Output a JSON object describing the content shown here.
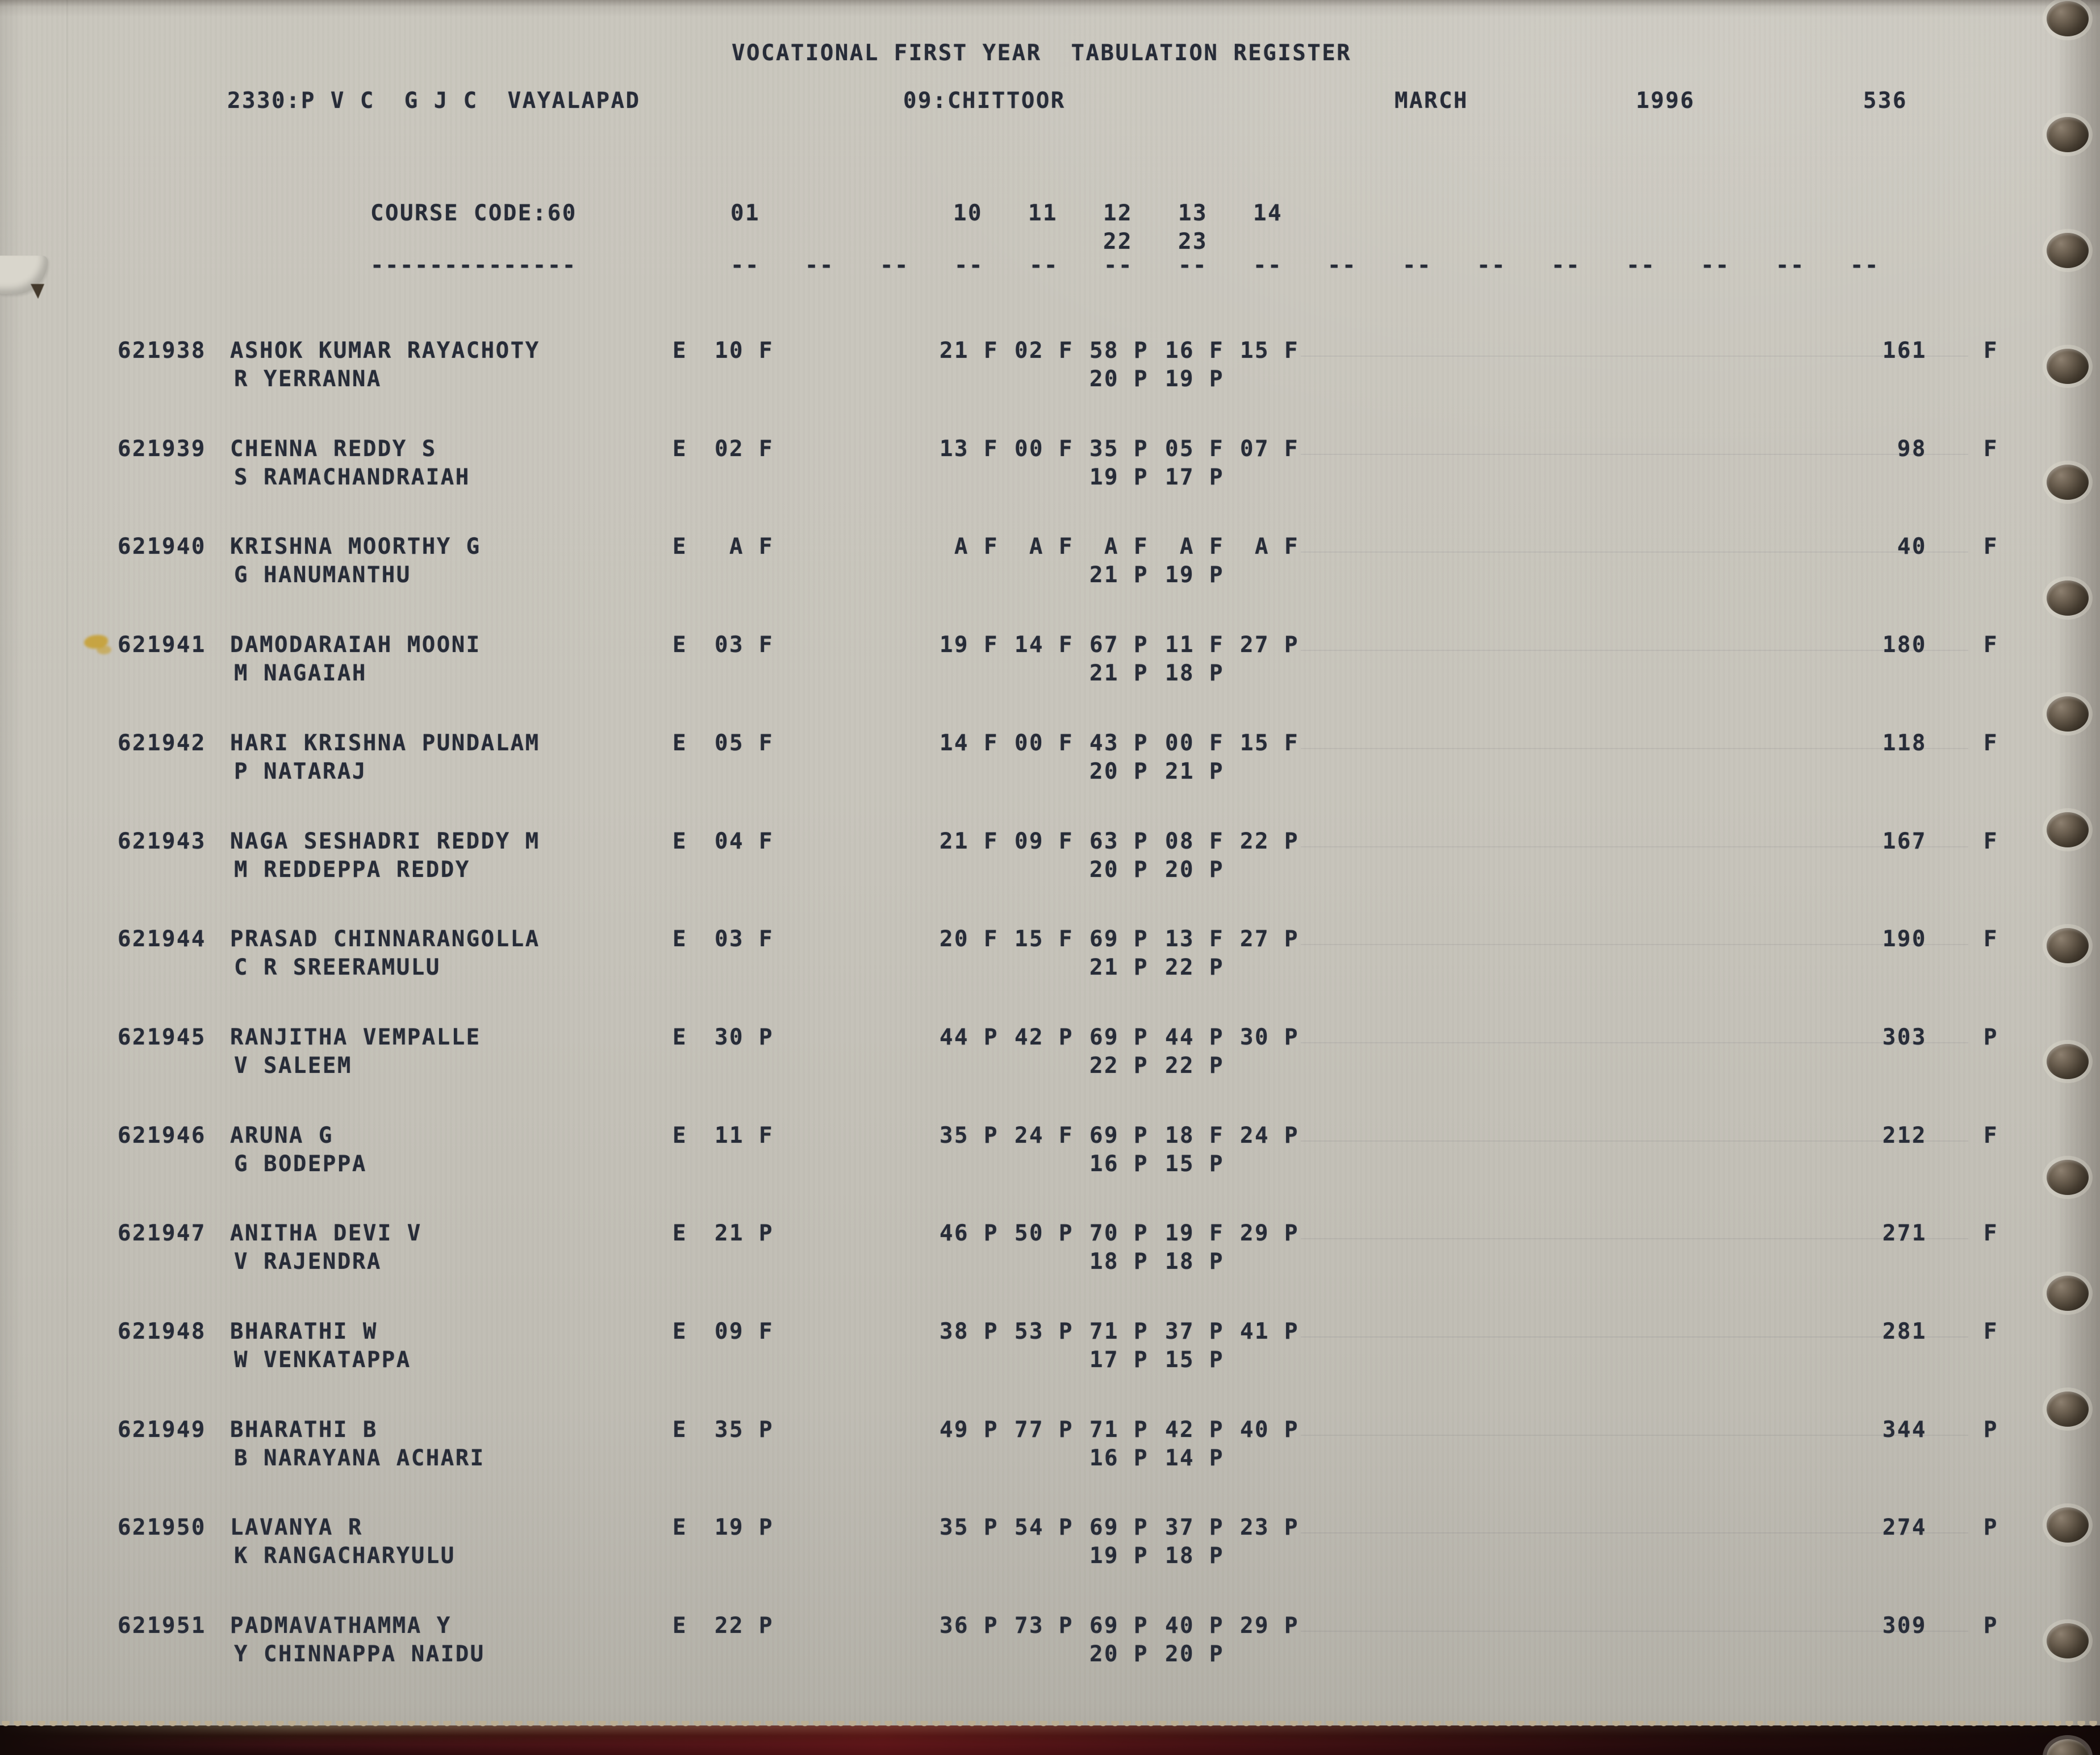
{
  "page": {
    "title": "VOCATIONAL FIRST YEAR  TABULATION REGISTER",
    "college": "2330:P V C  G J C  VAYALAPAD",
    "district": "09:CHITTOOR",
    "month": "MARCH",
    "year": "1996",
    "page_no": "536"
  },
  "course": {
    "label": "COURSE CODE:60",
    "underline": "--------------",
    "dash": "--",
    "columns_line1": [
      "01",
      "10",
      "11",
      "12",
      "13",
      "14"
    ],
    "columns_line2": [
      "22",
      "23"
    ]
  },
  "rows": [
    {
      "regno": "621938",
      "name": "ASHOK KUMAR RAYACHOTY",
      "father": "R YERRANNA",
      "e": "E",
      "m01": "10",
      "f01": "F",
      "marks": [
        [
          "21",
          "F"
        ],
        [
          "02",
          "F"
        ],
        [
          "58",
          "P"
        ],
        [
          "16",
          "F"
        ],
        [
          "15",
          "F"
        ]
      ],
      "sub": [
        [
          "20",
          "P"
        ],
        [
          "19",
          "P"
        ]
      ],
      "total": "161",
      "result": "F"
    },
    {
      "regno": "621939",
      "name": "CHENNA REDDY S",
      "father": "S RAMACHANDRAIAH",
      "e": "E",
      "m01": "02",
      "f01": "F",
      "marks": [
        [
          "13",
          "F"
        ],
        [
          "00",
          "F"
        ],
        [
          "35",
          "P"
        ],
        [
          "05",
          "F"
        ],
        [
          "07",
          "F"
        ]
      ],
      "sub": [
        [
          "19",
          "P"
        ],
        [
          "17",
          "P"
        ]
      ],
      "total": "98",
      "result": "F"
    },
    {
      "regno": "621940",
      "name": "KRISHNA MOORTHY G",
      "father": "G HANUMANTHU",
      "e": "E",
      "m01": "A",
      "f01": "F",
      "marks": [
        [
          "A",
          "F"
        ],
        [
          "A",
          "F"
        ],
        [
          "A",
          "F"
        ],
        [
          "A",
          "F"
        ],
        [
          "A",
          "F"
        ]
      ],
      "sub": [
        [
          "21",
          "P"
        ],
        [
          "19",
          "P"
        ]
      ],
      "total": "40",
      "result": "F"
    },
    {
      "regno": "621941",
      "name": "DAMODARAIAH MOONI",
      "father": "M NAGAIAH",
      "e": "E",
      "m01": "03",
      "f01": "F",
      "marks": [
        [
          "19",
          "F"
        ],
        [
          "14",
          "F"
        ],
        [
          "67",
          "P"
        ],
        [
          "11",
          "F"
        ],
        [
          "27",
          "P"
        ]
      ],
      "sub": [
        [
          "21",
          "P"
        ],
        [
          "18",
          "P"
        ]
      ],
      "total": "180",
      "result": "F"
    },
    {
      "regno": "621942",
      "name": "HARI KRISHNA PUNDALAM",
      "father": "P NATARAJ",
      "e": "E",
      "m01": "05",
      "f01": "F",
      "marks": [
        [
          "14",
          "F"
        ],
        [
          "00",
          "F"
        ],
        [
          "43",
          "P"
        ],
        [
          "00",
          "F"
        ],
        [
          "15",
          "F"
        ]
      ],
      "sub": [
        [
          "20",
          "P"
        ],
        [
          "21",
          "P"
        ]
      ],
      "total": "118",
      "result": "F"
    },
    {
      "regno": "621943",
      "name": "NAGA SESHADRI REDDY M",
      "father": "M REDDEPPA REDDY",
      "e": "E",
      "m01": "04",
      "f01": "F",
      "marks": [
        [
          "21",
          "F"
        ],
        [
          "09",
          "F"
        ],
        [
          "63",
          "P"
        ],
        [
          "08",
          "F"
        ],
        [
          "22",
          "P"
        ]
      ],
      "sub": [
        [
          "20",
          "P"
        ],
        [
          "20",
          "P"
        ]
      ],
      "total": "167",
      "result": "F"
    },
    {
      "regno": "621944",
      "name": "PRASAD CHINNARANGOLLA",
      "father": "C R SREERAMULU",
      "e": "E",
      "m01": "03",
      "f01": "F",
      "marks": [
        [
          "20",
          "F"
        ],
        [
          "15",
          "F"
        ],
        [
          "69",
          "P"
        ],
        [
          "13",
          "F"
        ],
        [
          "27",
          "P"
        ]
      ],
      "sub": [
        [
          "21",
          "P"
        ],
        [
          "22",
          "P"
        ]
      ],
      "total": "190",
      "result": "F"
    },
    {
      "regno": "621945",
      "name": "RANJITHA VEMPALLE",
      "father": "V SALEEM",
      "e": "E",
      "m01": "30",
      "f01": "P",
      "marks": [
        [
          "44",
          "P"
        ],
        [
          "42",
          "P"
        ],
        [
          "69",
          "P"
        ],
        [
          "44",
          "P"
        ],
        [
          "30",
          "P"
        ]
      ],
      "sub": [
        [
          "22",
          "P"
        ],
        [
          "22",
          "P"
        ]
      ],
      "total": "303",
      "result": "P"
    },
    {
      "regno": "621946",
      "name": "ARUNA G",
      "father": "G BODEPPA",
      "e": "E",
      "m01": "11",
      "f01": "F",
      "marks": [
        [
          "35",
          "P"
        ],
        [
          "24",
          "F"
        ],
        [
          "69",
          "P"
        ],
        [
          "18",
          "F"
        ],
        [
          "24",
          "P"
        ]
      ],
      "sub": [
        [
          "16",
          "P"
        ],
        [
          "15",
          "P"
        ]
      ],
      "total": "212",
      "result": "F"
    },
    {
      "regno": "621947",
      "name": "ANITHA DEVI V",
      "father": "V RAJENDRA",
      "e": "E",
      "m01": "21",
      "f01": "P",
      "marks": [
        [
          "46",
          "P"
        ],
        [
          "50",
          "P"
        ],
        [
          "70",
          "P"
        ],
        [
          "19",
          "F"
        ],
        [
          "29",
          "P"
        ]
      ],
      "sub": [
        [
          "18",
          "P"
        ],
        [
          "18",
          "P"
        ]
      ],
      "total": "271",
      "result": "F"
    },
    {
      "regno": "621948",
      "name": "BHARATHI W",
      "father": "W VENKATAPPA",
      "e": "E",
      "m01": "09",
      "f01": "F",
      "marks": [
        [
          "38",
          "P"
        ],
        [
          "53",
          "P"
        ],
        [
          "71",
          "P"
        ],
        [
          "37",
          "P"
        ],
        [
          "41",
          "P"
        ]
      ],
      "sub": [
        [
          "17",
          "P"
        ],
        [
          "15",
          "P"
        ]
      ],
      "total": "281",
      "result": "F"
    },
    {
      "regno": "621949",
      "name": "BHARATHI B",
      "father": "B NARAYANA ACHARI",
      "e": "E",
      "m01": "35",
      "f01": "P",
      "marks": [
        [
          "49",
          "P"
        ],
        [
          "77",
          "P"
        ],
        [
          "71",
          "P"
        ],
        [
          "42",
          "P"
        ],
        [
          "40",
          "P"
        ]
      ],
      "sub": [
        [
          "16",
          "P"
        ],
        [
          "14",
          "P"
        ]
      ],
      "total": "344",
      "result": "P"
    },
    {
      "regno": "621950",
      "name": "LAVANYA R",
      "father": "K RANGACHARYULU",
      "e": "E",
      "m01": "19",
      "f01": "P",
      "marks": [
        [
          "35",
          "P"
        ],
        [
          "54",
          "P"
        ],
        [
          "69",
          "P"
        ],
        [
          "37",
          "P"
        ],
        [
          "23",
          "P"
        ]
      ],
      "sub": [
        [
          "19",
          "P"
        ],
        [
          "18",
          "P"
        ]
      ],
      "total": "274",
      "result": "P"
    },
    {
      "regno": "621951",
      "name": "PADMAVATHAMMA Y",
      "father": "Y CHINNAPPA NAIDU",
      "e": "E",
      "m01": "22",
      "f01": "P",
      "marks": [
        [
          "36",
          "P"
        ],
        [
          "73",
          "P"
        ],
        [
          "69",
          "P"
        ],
        [
          "40",
          "P"
        ],
        [
          "29",
          "P"
        ]
      ],
      "sub": [
        [
          "20",
          "P"
        ],
        [
          "20",
          "P"
        ]
      ],
      "total": "309",
      "result": "P"
    }
  ]
}
